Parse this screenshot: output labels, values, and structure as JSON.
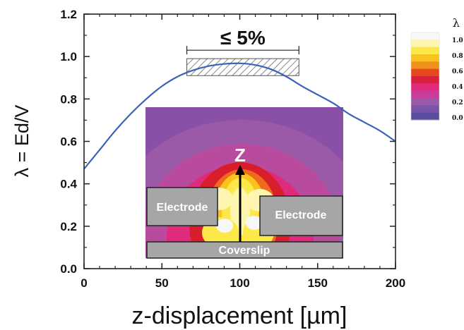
{
  "chart_data": {
    "type": "line",
    "xlabel": "z-displacement [µm]",
    "ylabel": "λ = Ed/V",
    "xlim": [
      0,
      200
    ],
    "ylim": [
      0.0,
      1.2
    ],
    "x_ticks": [
      "0",
      "50",
      "100",
      "150",
      "200"
    ],
    "y_ticks": [
      "0.0",
      "0.2",
      "0.4",
      "0.6",
      "0.8",
      "1.0",
      "1.2"
    ],
    "series": [
      {
        "color": "#3a62b8",
        "x": [
          0,
          10,
          20,
          30,
          40,
          50,
          60,
          70,
          80,
          90,
          100,
          110,
          120,
          130,
          140,
          150,
          160,
          170,
          180,
          190,
          200
        ],
        "y": [
          0.47,
          0.56,
          0.65,
          0.73,
          0.8,
          0.86,
          0.905,
          0.935,
          0.955,
          0.965,
          0.968,
          0.96,
          0.94,
          0.905,
          0.86,
          0.82,
          0.78,
          0.73,
          0.69,
          0.65,
          0.6
        ]
      }
    ],
    "annotation": {
      "text": "≤ 5%",
      "band_x": [
        66,
        138
      ],
      "band_y": [
        0.91,
        0.99
      ]
    },
    "inset": {
      "electrode_label": "Electrode",
      "coverslip_label": "Coverslip",
      "axis_label": "Z"
    },
    "colorbar": {
      "title": "λ",
      "ticks": [
        "1.0",
        "0.8",
        "0.6",
        "0.4",
        "0.2",
        "0.0"
      ],
      "colors": [
        "#f7f7f7",
        "#fef6b0",
        "#fde84a",
        "#f9c21d",
        "#f2901c",
        "#e6491c",
        "#d9203c",
        "#e02a7c",
        "#c93c9a",
        "#9a5aa7",
        "#7a54a8",
        "#5b4c9e"
      ]
    },
    "grid": false
  }
}
